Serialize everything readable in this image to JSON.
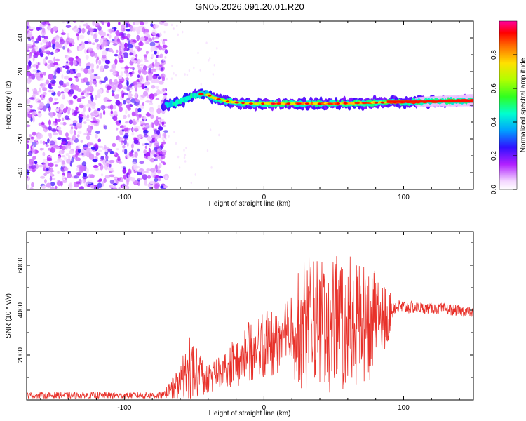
{
  "chart_data": [
    {
      "type": "heatmap",
      "title": "GN05.2026.091.20.01.R20",
      "xlabel": "Height of straight line (km)",
      "ylabel": "Frequency (Hz)",
      "xlim": [
        -170,
        150
      ],
      "ylim": [
        -50,
        50
      ],
      "xticks": [
        -100,
        0,
        100
      ],
      "yticks": [
        -40,
        -20,
        0,
        20,
        40
      ],
      "colorbar": {
        "label": "Normalized spectral amplitude",
        "range": [
          0,
          1
        ],
        "ticks": [
          0.0,
          0.2,
          0.4,
          0.6,
          0.8
        ],
        "tick_labels": [
          "0.0",
          "0.2",
          "0.4",
          "0.6",
          "0.8"
        ]
      },
      "noise_region_x": [
        -170,
        -70
      ],
      "signal_center": [
        {
          "x": -72,
          "f": 0
        },
        {
          "x": -65,
          "f": 1
        },
        {
          "x": -58,
          "f": 3
        },
        {
          "x": -50,
          "f": 6
        },
        {
          "x": -42,
          "f": 7
        },
        {
          "x": -35,
          "f": 4
        },
        {
          "x": -25,
          "f": 2
        },
        {
          "x": -10,
          "f": 1
        },
        {
          "x": 0,
          "f": 1
        },
        {
          "x": 20,
          "f": 1
        },
        {
          "x": 50,
          "f": 1
        },
        {
          "x": 80,
          "f": 1.5
        },
        {
          "x": 110,
          "f": 2
        },
        {
          "x": 150,
          "f": 3
        }
      ]
    },
    {
      "type": "line",
      "xlabel": "Height of straight line (km)",
      "ylabel": "SNR (10 * v/v)",
      "xlim": [
        -170,
        150
      ],
      "ylim": [
        0,
        7500
      ],
      "xticks": [
        -100,
        0,
        100
      ],
      "yticks": [
        2000,
        4000,
        6000
      ],
      "color": "#e8312a",
      "envelope": [
        {
          "x": -170,
          "base": 200,
          "amp": 150
        },
        {
          "x": -72,
          "base": 200,
          "amp": 150
        },
        {
          "x": -62,
          "base": 600,
          "amp": 900
        },
        {
          "x": -52,
          "base": 1400,
          "amp": 1900
        },
        {
          "x": -42,
          "base": 900,
          "amp": 700
        },
        {
          "x": -30,
          "base": 1300,
          "amp": 900
        },
        {
          "x": -15,
          "base": 2000,
          "amp": 1500
        },
        {
          "x": 0,
          "base": 2400,
          "amp": 1600
        },
        {
          "x": 15,
          "base": 2800,
          "amp": 2000
        },
        {
          "x": 30,
          "base": 3400,
          "amp": 3400
        },
        {
          "x": 45,
          "base": 3300,
          "amp": 3400
        },
        {
          "x": 60,
          "base": 3500,
          "amp": 3300
        },
        {
          "x": 75,
          "base": 3500,
          "amp": 3000
        },
        {
          "x": 85,
          "base": 3400,
          "amp": 2000
        },
        {
          "x": 93,
          "base": 4150,
          "amp": 350
        },
        {
          "x": 110,
          "base": 4100,
          "amp": 250
        },
        {
          "x": 130,
          "base": 4050,
          "amp": 250
        },
        {
          "x": 150,
          "base": 3900,
          "amp": 250
        }
      ]
    }
  ]
}
